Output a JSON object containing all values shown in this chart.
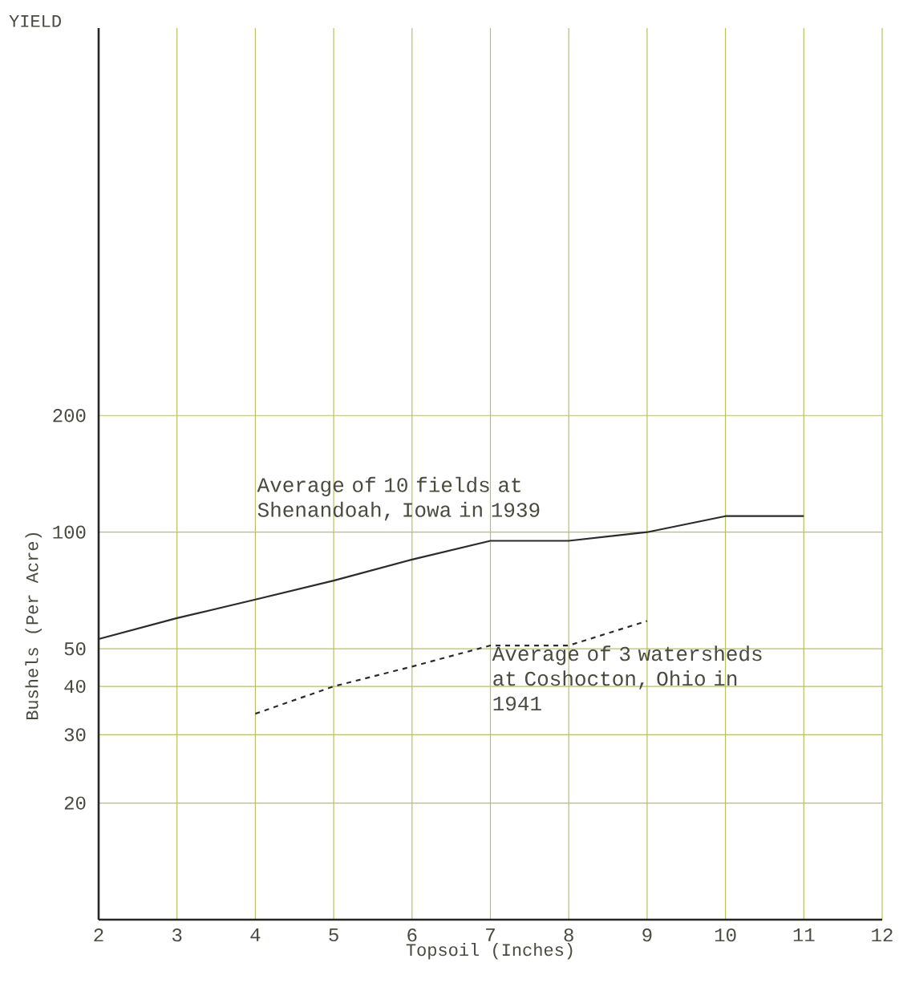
{
  "chart_data": {
    "type": "line",
    "xlabel": "Topsoil (Inches)",
    "ylabel": "Bushels (Per Acre)",
    "annotations": [
      "YIELD"
    ],
    "series": [
      {
        "name": "Average of 10 fields at Shenandoah, Iowa in 1939",
        "color": "#2b2b2b",
        "line_style": "solid",
        "x": [
          2,
          3,
          4,
          5,
          6,
          7,
          8,
          9,
          10,
          11
        ],
        "values": [
          53,
          60,
          67,
          75,
          85,
          95,
          95,
          100,
          110,
          110
        ]
      },
      {
        "name": "Average of 3 watersheds at Coshocton, Ohio in 1941",
        "color": "#2b2b2b",
        "line_style": "dashed",
        "x": [
          4,
          5,
          6,
          7,
          8,
          9
        ],
        "values": [
          34,
          40,
          45,
          51,
          51,
          59
        ]
      }
    ],
    "xlim": [
      2,
      12
    ],
    "xticks": [
      2,
      3,
      4,
      5,
      6,
      7,
      8,
      9,
      10,
      11,
      12
    ],
    "ylim": [
      10,
      2000
    ],
    "yticks": [
      20,
      30,
      40,
      50,
      100,
      200
    ],
    "log": "y",
    "grid": true
  }
}
